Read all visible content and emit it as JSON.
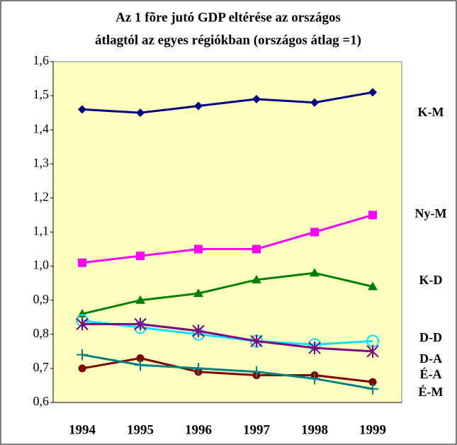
{
  "chart_data": {
    "type": "line",
    "title": [
      "Az 1 fõre jutó GDP eltérése az országos",
      "átlagtól az egyes régiókban (országos átlag =1)"
    ],
    "categories": [
      "1994",
      "1995",
      "1996",
      "1997",
      "1998",
      "1999"
    ],
    "ylim": [
      0.6,
      1.6
    ],
    "yticks": [
      {
        "value": 0.6,
        "label": "0,6"
      },
      {
        "value": 0.7,
        "label": "0,7"
      },
      {
        "value": 0.8,
        "label": "0,8"
      },
      {
        "value": 0.9,
        "label": "0,9"
      },
      {
        "value": 1.0,
        "label": "1,0"
      },
      {
        "value": 1.1,
        "label": "1,1"
      },
      {
        "value": 1.2,
        "label": "1,2"
      },
      {
        "value": 1.3,
        "label": "1,3"
      },
      {
        "value": 1.4,
        "label": "1,4"
      },
      {
        "value": 1.5,
        "label": "1,5"
      },
      {
        "value": 1.6,
        "label": "1,6"
      }
    ],
    "grid": false,
    "series": [
      {
        "name": "K-M",
        "color": "#000080",
        "marker": "diamond",
        "values": [
          1.46,
          1.45,
          1.47,
          1.49,
          1.48,
          1.51
        ]
      },
      {
        "name": "Ny-M",
        "color": "#ff00ff",
        "marker": "square",
        "values": [
          1.01,
          1.03,
          1.05,
          1.05,
          1.1,
          1.15
        ]
      },
      {
        "name": "K-D",
        "color": "#008000",
        "marker": "triangle",
        "values": [
          0.86,
          0.9,
          0.92,
          0.96,
          0.98,
          0.94
        ]
      },
      {
        "name": "D-D",
        "color": "#00e5ff",
        "marker": "open-circle",
        "values": [
          0.84,
          0.82,
          0.8,
          0.78,
          0.77,
          0.78
        ]
      },
      {
        "name": "D-A",
        "color": "#800080",
        "marker": "star",
        "values": [
          0.83,
          0.83,
          0.81,
          0.78,
          0.76,
          0.75
        ]
      },
      {
        "name": "É-A",
        "color": "#800000",
        "marker": "circle",
        "values": [
          0.7,
          0.73,
          0.69,
          0.68,
          0.68,
          0.66
        ]
      },
      {
        "name": "É-M",
        "color": "#008080",
        "marker": "plus",
        "values": [
          0.74,
          0.71,
          0.7,
          0.69,
          0.67,
          0.64
        ]
      }
    ]
  }
}
